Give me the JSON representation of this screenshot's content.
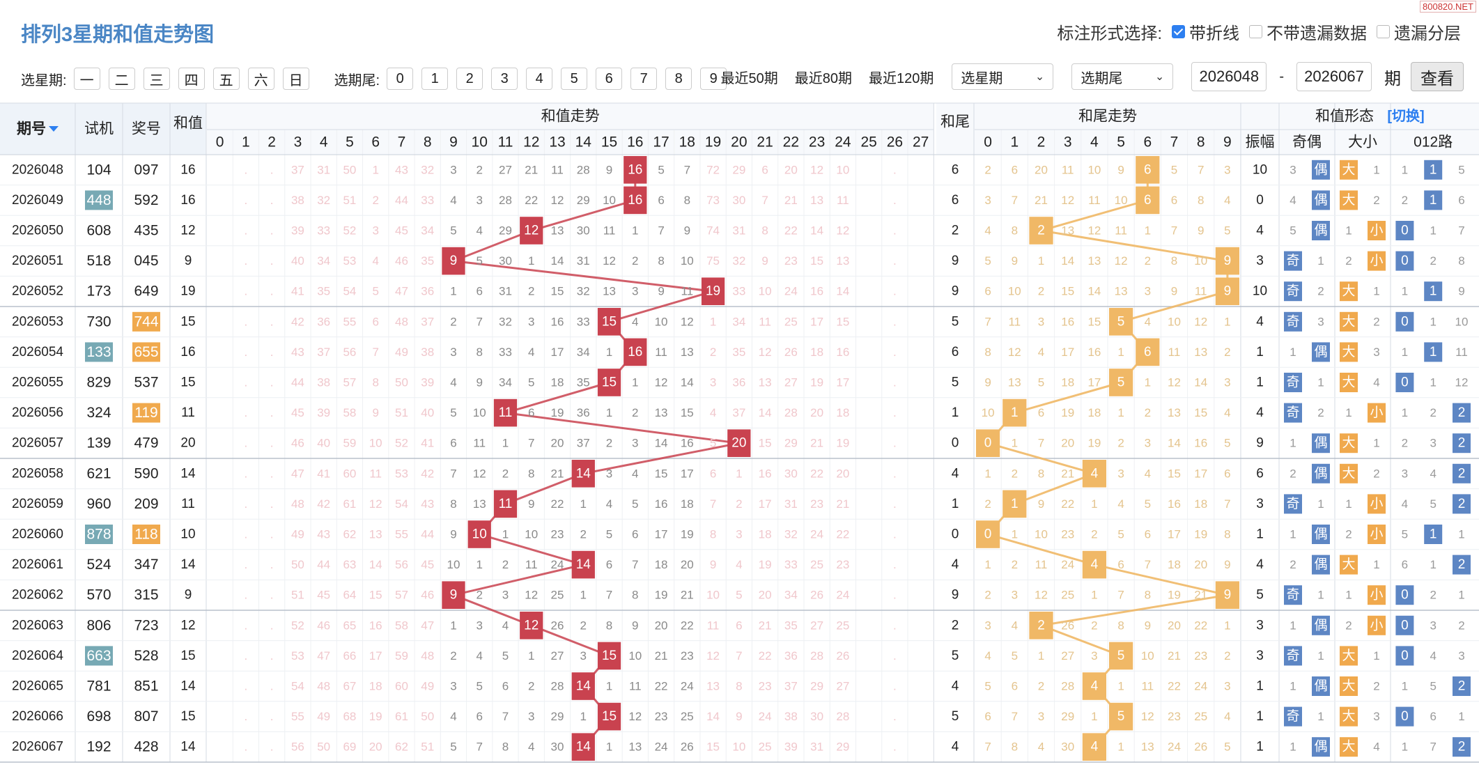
{
  "watermark": "800820.NET",
  "header": {
    "title": "排列3星期和值走势图",
    "mark_label": "标注形式选择:",
    "opts": [
      {
        "label": "带折线",
        "checked": true
      },
      {
        "label": "不带遗漏数据",
        "checked": false
      },
      {
        "label": "遗漏分层",
        "checked": false
      }
    ]
  },
  "filter": {
    "week_label": "选星期:",
    "weekdays": [
      "一",
      "二",
      "三",
      "四",
      "五",
      "六",
      "日"
    ],
    "tail_label": "选期尾:",
    "tails": [
      "0",
      "1",
      "2",
      "3",
      "4",
      "5",
      "6",
      "7",
      "8",
      "9"
    ],
    "quick": [
      "最近50期",
      "最近80期",
      "最近120期"
    ],
    "week_select": "选星期",
    "tail_select": "选期尾",
    "from": "2026048",
    "dash": "-",
    "to": "2026067",
    "period": "期",
    "go": "查看"
  },
  "table_headers": {
    "issue": "期号",
    "test": "试机",
    "draw": "奖号",
    "sum": "和值",
    "sum_trend": "和值走势",
    "tail": "和尾",
    "tail_trend": "和尾走势",
    "shape": "和值形态",
    "switch": "[切换]",
    "amp": "振幅",
    "oe": "奇偶",
    "bs": "大小",
    "r012": "012路",
    "odd": "奇",
    "even": "偶",
    "big": "大",
    "small": "小"
  },
  "colors": {
    "sum": "#c9424f",
    "tail": "#f0b866",
    "oe": "#5d86c4",
    "r012": "#5d86c4",
    "test_hl": "#77a9b4",
    "draw_hl": "#f0a94d"
  },
  "chart_data": {
    "type": "table",
    "title": "排列3星期和值走势图",
    "xlabel": "和值走势",
    "ylabel": "期号",
    "ylim": [
      0,
      27
    ],
    "categories": [
      "2026048",
      "2026049",
      "2026050",
      "2026051",
      "2026052",
      "2026053",
      "2026054",
      "2026055",
      "2026056",
      "2026057",
      "2026058",
      "2026059",
      "2026060",
      "2026061",
      "2026062",
      "2026063",
      "2026064",
      "2026065",
      "2026066",
      "2026067"
    ],
    "test": [
      "104",
      "448",
      "608",
      "518",
      "173",
      "730",
      "133",
      "829",
      "324",
      "139",
      "621",
      "960",
      "878",
      "524",
      "570",
      "806",
      "663",
      "781",
      "698",
      "192"
    ],
    "test_hl": [
      false,
      true,
      false,
      false,
      false,
      false,
      true,
      false,
      false,
      false,
      false,
      false,
      true,
      false,
      false,
      false,
      true,
      false,
      false,
      false
    ],
    "draw": [
      "097",
      "592",
      "435",
      "045",
      "649",
      "744",
      "655",
      "537",
      "119",
      "479",
      "590",
      "209",
      "118",
      "347",
      "315",
      "723",
      "528",
      "851",
      "807",
      "428"
    ],
    "draw_hl": [
      false,
      false,
      false,
      false,
      false,
      true,
      true,
      false,
      true,
      false,
      false,
      false,
      true,
      false,
      false,
      false,
      false,
      false,
      false,
      false
    ],
    "series": [
      {
        "name": "和值",
        "values": [
          16,
          16,
          12,
          9,
          19,
          15,
          16,
          15,
          11,
          20,
          14,
          11,
          10,
          14,
          9,
          12,
          15,
          14,
          15,
          14
        ]
      },
      {
        "name": "和尾",
        "values": [
          6,
          6,
          2,
          9,
          9,
          5,
          6,
          5,
          1,
          0,
          4,
          1,
          0,
          4,
          9,
          2,
          5,
          4,
          5,
          4
        ]
      },
      {
        "name": "振幅",
        "values": [
          10,
          0,
          4,
          3,
          10,
          4,
          1,
          1,
          4,
          9,
          6,
          3,
          1,
          4,
          5,
          3,
          3,
          1,
          1,
          1
        ]
      }
    ],
    "oe": [
      "偶",
      "偶",
      "偶",
      "奇",
      "奇",
      "奇",
      "偶",
      "奇",
      "奇",
      "偶",
      "偶",
      "奇",
      "偶",
      "偶",
      "奇",
      "偶",
      "奇",
      "偶",
      "奇",
      "偶"
    ],
    "bs": [
      "大",
      "大",
      "小",
      "小",
      "大",
      "大",
      "大",
      "大",
      "小",
      "大",
      "大",
      "小",
      "小",
      "大",
      "小",
      "小",
      "大",
      "大",
      "大",
      "大"
    ],
    "r012": [
      1,
      1,
      0,
      0,
      1,
      0,
      1,
      0,
      2,
      2,
      2,
      2,
      1,
      2,
      0,
      0,
      0,
      2,
      0,
      2
    ],
    "sum_axis": [
      0,
      1,
      2,
      3,
      4,
      5,
      6,
      7,
      8,
      9,
      10,
      11,
      12,
      13,
      14,
      15,
      16,
      17,
      18,
      19,
      20,
      21,
      22,
      23,
      24,
      25,
      26,
      27
    ],
    "tail_axis": [
      0,
      1,
      2,
      3,
      4,
      5,
      6,
      7,
      8,
      9
    ],
    "r012_axis": [
      0,
      1,
      2
    ],
    "sum_cells": [
      [
        "",
        ".",
        ".",
        "37",
        "31",
        "50",
        "1",
        "43",
        "32",
        "3",
        "2",
        "27",
        "21",
        "11",
        "28",
        "9",
        "16",
        "5",
        "7",
        "72",
        "29",
        "6",
        "20",
        "12",
        "10",
        "",
        ".",
        ""
      ],
      [
        "",
        ".",
        ".",
        "38",
        "32",
        "51",
        "2",
        "44",
        "33",
        "4",
        "3",
        "28",
        "22",
        "12",
        "29",
        "10",
        "16",
        "6",
        "8",
        "73",
        "30",
        "7",
        "21",
        "13",
        "11",
        "",
        ".",
        ""
      ],
      [
        "",
        ".",
        ".",
        "39",
        "33",
        "52",
        "3",
        "45",
        "34",
        "5",
        "4",
        "29",
        "12",
        "13",
        "30",
        "11",
        "1",
        "7",
        "9",
        "74",
        "31",
        "8",
        "22",
        "14",
        "12",
        "",
        ".",
        ""
      ],
      [
        "",
        ".",
        ".",
        "40",
        "34",
        "53",
        "4",
        "46",
        "35",
        "9",
        "5",
        "30",
        "1",
        "14",
        "31",
        "12",
        "2",
        "8",
        "10",
        "75",
        "32",
        "9",
        "23",
        "15",
        "13",
        "",
        ".",
        ""
      ],
      [
        "",
        ".",
        ".",
        "41",
        "35",
        "54",
        "5",
        "47",
        "36",
        "1",
        "6",
        "31",
        "2",
        "15",
        "32",
        "13",
        "3",
        "9",
        "11",
        "19",
        "33",
        "10",
        "24",
        "16",
        "14",
        "",
        ".",
        ""
      ],
      [
        "",
        ".",
        ".",
        "42",
        "36",
        "55",
        "6",
        "48",
        "37",
        "2",
        "7",
        "32",
        "3",
        "16",
        "33",
        "15",
        "4",
        "10",
        "12",
        "1",
        "34",
        "11",
        "25",
        "17",
        "15",
        "",
        ".",
        ""
      ],
      [
        "",
        ".",
        ".",
        "43",
        "37",
        "56",
        "7",
        "49",
        "38",
        "3",
        "8",
        "33",
        "4",
        "17",
        "34",
        "1",
        "16",
        "11",
        "13",
        "2",
        "35",
        "12",
        "26",
        "18",
        "16",
        "",
        ".",
        ""
      ],
      [
        "",
        ".",
        ".",
        "44",
        "38",
        "57",
        "8",
        "50",
        "39",
        "4",
        "9",
        "34",
        "5",
        "18",
        "35",
        "15",
        "1",
        "12",
        "14",
        "3",
        "36",
        "13",
        "27",
        "19",
        "17",
        "",
        ".",
        ""
      ],
      [
        "",
        ".",
        ".",
        "45",
        "39",
        "58",
        "9",
        "51",
        "40",
        "5",
        "10",
        "11",
        "6",
        "19",
        "36",
        "1",
        "2",
        "13",
        "15",
        "4",
        "37",
        "14",
        "28",
        "20",
        "18",
        "",
        ".",
        ""
      ],
      [
        "",
        ".",
        ".",
        "46",
        "40",
        "59",
        "10",
        "52",
        "41",
        "6",
        "11",
        "1",
        "7",
        "20",
        "37",
        "2",
        "3",
        "14",
        "16",
        "5",
        "20",
        "15",
        "29",
        "21",
        "19",
        "",
        ".",
        ""
      ],
      [
        "",
        ".",
        ".",
        "47",
        "41",
        "60",
        "11",
        "53",
        "42",
        "7",
        "12",
        "2",
        "8",
        "21",
        "14",
        "3",
        "4",
        "15",
        "17",
        "6",
        "1",
        "16",
        "30",
        "22",
        "20",
        "",
        ".",
        ""
      ],
      [
        "",
        ".",
        ".",
        "48",
        "42",
        "61",
        "12",
        "54",
        "43",
        "8",
        "13",
        "11",
        "9",
        "22",
        "1",
        "4",
        "5",
        "16",
        "18",
        "7",
        "2",
        "17",
        "31",
        "23",
        "21",
        "",
        ".",
        ""
      ],
      [
        "",
        ".",
        ".",
        "49",
        "43",
        "62",
        "13",
        "55",
        "44",
        "9",
        "10",
        "1",
        "10",
        "23",
        "2",
        "5",
        "6",
        "17",
        "19",
        "8",
        "3",
        "18",
        "32",
        "24",
        "22",
        "",
        ".",
        ""
      ],
      [
        "",
        ".",
        ".",
        "50",
        "44",
        "63",
        "14",
        "56",
        "45",
        "10",
        "1",
        "2",
        "11",
        "24",
        "14",
        "6",
        "7",
        "18",
        "20",
        "9",
        "4",
        "19",
        "33",
        "25",
        "23",
        "",
        ".",
        ""
      ],
      [
        "",
        ".",
        ".",
        "51",
        "45",
        "64",
        "15",
        "57",
        "46",
        "9",
        "2",
        "3",
        "12",
        "25",
        "1",
        "7",
        "8",
        "19",
        "21",
        "10",
        "5",
        "20",
        "34",
        "26",
        "24",
        "",
        ".",
        ""
      ],
      [
        "",
        ".",
        ".",
        "52",
        "46",
        "65",
        "16",
        "58",
        "47",
        "1",
        "3",
        "4",
        "12",
        "26",
        "2",
        "8",
        "9",
        "20",
        "22",
        "11",
        "6",
        "21",
        "35",
        "27",
        "25",
        "",
        ".",
        ""
      ],
      [
        "",
        ".",
        ".",
        "53",
        "47",
        "66",
        "17",
        "59",
        "48",
        "2",
        "4",
        "5",
        "1",
        "27",
        "3",
        "15",
        "10",
        "21",
        "23",
        "12",
        "7",
        "22",
        "36",
        "28",
        "26",
        "",
        ".",
        ""
      ],
      [
        "",
        ".",
        ".",
        "54",
        "48",
        "67",
        "18",
        "60",
        "49",
        "3",
        "5",
        "6",
        "2",
        "28",
        "14",
        "1",
        "11",
        "22",
        "24",
        "13",
        "8",
        "23",
        "37",
        "29",
        "27",
        "",
        ".",
        ""
      ],
      [
        "",
        ".",
        ".",
        "55",
        "49",
        "68",
        "19",
        "61",
        "50",
        "4",
        "6",
        "7",
        "3",
        "29",
        "1",
        "15",
        "12",
        "23",
        "25",
        "14",
        "9",
        "24",
        "38",
        "30",
        "28",
        "",
        ".",
        ""
      ],
      [
        "",
        ".",
        ".",
        "56",
        "50",
        "69",
        "20",
        "62",
        "51",
        "5",
        "7",
        "8",
        "4",
        "30",
        "14",
        "1",
        "13",
        "24",
        "26",
        "15",
        "10",
        "25",
        "39",
        "31",
        "29",
        "",
        ".",
        ""
      ]
    ],
    "tail_cells": [
      [
        "2",
        "6",
        "20",
        "11",
        "10",
        "9",
        "6",
        "5",
        "7",
        "3"
      ],
      [
        "3",
        "7",
        "21",
        "12",
        "11",
        "10",
        "6",
        "6",
        "8",
        "4"
      ],
      [
        "4",
        "8",
        "2",
        "13",
        "12",
        "11",
        "1",
        "7",
        "9",
        "5"
      ],
      [
        "5",
        "9",
        "1",
        "14",
        "13",
        "12",
        "2",
        "8",
        "10",
        "9"
      ],
      [
        "6",
        "10",
        "2",
        "15",
        "14",
        "13",
        "3",
        "9",
        "11",
        "9"
      ],
      [
        "7",
        "11",
        "3",
        "16",
        "15",
        "5",
        "4",
        "10",
        "12",
        "1"
      ],
      [
        "8",
        "12",
        "4",
        "17",
        "16",
        "1",
        "6",
        "11",
        "13",
        "2"
      ],
      [
        "9",
        "13",
        "5",
        "18",
        "17",
        "5",
        "1",
        "12",
        "14",
        "3"
      ],
      [
        "10",
        "1",
        "6",
        "19",
        "18",
        "1",
        "2",
        "13",
        "15",
        "4"
      ],
      [
        "0",
        "1",
        "7",
        "20",
        "19",
        "2",
        "3",
        "14",
        "16",
        "5"
      ],
      [
        "1",
        "2",
        "8",
        "21",
        "4",
        "3",
        "4",
        "15",
        "17",
        "6"
      ],
      [
        "2",
        "1",
        "9",
        "22",
        "1",
        "4",
        "5",
        "16",
        "18",
        "7"
      ],
      [
        "0",
        "1",
        "10",
        "23",
        "2",
        "5",
        "6",
        "17",
        "19",
        "8"
      ],
      [
        "1",
        "2",
        "11",
        "24",
        "4",
        "6",
        "7",
        "18",
        "20",
        "9"
      ],
      [
        "2",
        "3",
        "12",
        "25",
        "1",
        "7",
        "8",
        "19",
        "21",
        "9"
      ],
      [
        "3",
        "4",
        "2",
        "26",
        "2",
        "8",
        "9",
        "20",
        "22",
        "1"
      ],
      [
        "4",
        "5",
        "1",
        "27",
        "3",
        "5",
        "10",
        "21",
        "23",
        "2"
      ],
      [
        "5",
        "6",
        "2",
        "28",
        "4",
        "1",
        "11",
        "22",
        "24",
        "3"
      ],
      [
        "6",
        "7",
        "3",
        "29",
        "1",
        "5",
        "12",
        "23",
        "25",
        "4"
      ],
      [
        "7",
        "8",
        "4",
        "30",
        "4",
        "1",
        "13",
        "24",
        "26",
        "5"
      ]
    ],
    "oe_miss": [
      [
        "3",
        ""
      ],
      [
        "4",
        ""
      ],
      [
        "5",
        ""
      ],
      [
        "",
        "1"
      ],
      [
        "",
        "2"
      ],
      [
        "",
        "3"
      ],
      [
        "1",
        ""
      ],
      [
        "",
        "1"
      ],
      [
        "",
        "2"
      ],
      [
        "1",
        ""
      ],
      [
        "2",
        ""
      ],
      [
        "",
        "1"
      ],
      [
        "1",
        ""
      ],
      [
        "2",
        ""
      ],
      [
        "",
        "1"
      ],
      [
        "1",
        ""
      ],
      [
        "",
        "1"
      ],
      [
        "1",
        ""
      ],
      [
        "",
        "1"
      ],
      [
        "1",
        ""
      ]
    ],
    "bs_miss": [
      [
        "",
        "1"
      ],
      [
        "",
        "2"
      ],
      [
        "1",
        ""
      ],
      [
        "2",
        ""
      ],
      [
        "",
        "1"
      ],
      [
        "",
        "2"
      ],
      [
        "",
        "3"
      ],
      [
        "",
        "4"
      ],
      [
        "1",
        ""
      ],
      [
        "",
        "1"
      ],
      [
        "",
        "2"
      ],
      [
        "1",
        ""
      ],
      [
        "2",
        ""
      ],
      [
        "",
        "1"
      ],
      [
        "1",
        ""
      ],
      [
        "2",
        ""
      ],
      [
        "",
        "1"
      ],
      [
        "",
        "2"
      ],
      [
        "",
        "3"
      ],
      [
        "",
        "4"
      ]
    ],
    "r012_miss": [
      [
        "1",
        "",
        "5"
      ],
      [
        "2",
        "",
        "6"
      ],
      [
        "",
        "1",
        "7"
      ],
      [
        "",
        "2",
        "8"
      ],
      [
        "1",
        "",
        "9"
      ],
      [
        "",
        "1",
        "10"
      ],
      [
        "1",
        "",
        "11"
      ],
      [
        "",
        "1",
        "12"
      ],
      [
        "1",
        "2",
        ""
      ],
      [
        "2",
        "3",
        ""
      ],
      [
        "3",
        "4",
        ""
      ],
      [
        "4",
        "5",
        ""
      ],
      [
        "5",
        "",
        "1"
      ],
      [
        "6",
        "1",
        ""
      ],
      [
        "",
        "2",
        "1"
      ],
      [
        "",
        "3",
        "2"
      ],
      [
        "",
        "4",
        "3"
      ],
      [
        "1",
        "5",
        ""
      ],
      [
        "",
        "6",
        "1"
      ],
      [
        "1",
        "7",
        ""
      ]
    ]
  }
}
